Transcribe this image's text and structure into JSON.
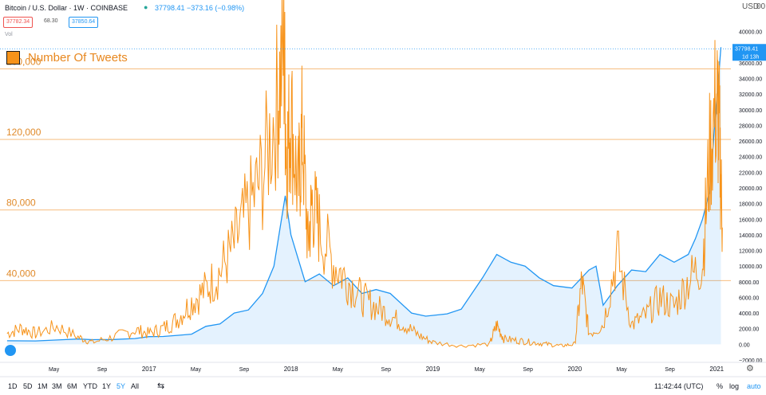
{
  "header": {
    "title": "Bitcoin / U.S. Dollar · 1W · COINBASE",
    "price_info": "37798.41 −373.16 (−0.98%)",
    "bid": "37782.34",
    "spread": "68.30",
    "ask": "37850.64",
    "volume_label": "Vol",
    "top_right_labels": [
      "USD",
      "00"
    ]
  },
  "legend": {
    "label": "Number Of Tweets",
    "color": "#f7931a"
  },
  "bottom_bar": {
    "ranges": [
      "1D",
      "5D",
      "1M",
      "3M",
      "6M",
      "YTD",
      "1Y",
      "5Y",
      "All"
    ],
    "active_range": "5Y",
    "clock": "11:42:44 (UTC)",
    "percent_label": "%",
    "log_label": "log",
    "auto_label": "auto"
  },
  "colors": {
    "price_line": "#2196f3",
    "price_fill": "#2196f3",
    "tweets": "#f7931a",
    "tweet_grid": "#f5b46e",
    "text": "#131722",
    "axis_text": "#131722"
  },
  "chart_data": [
    {
      "type": "area",
      "title": "Bitcoin / U.S. Dollar · 1W · COINBASE",
      "series": [
        {
          "values": [
            [
              2016.0,
              450
            ],
            [
              2016.2,
              430
            ],
            [
              2016.4,
              600
            ],
            [
              2016.5,
              680
            ],
            [
              2016.6,
              600
            ],
            [
              2016.75,
              620
            ],
            [
              2016.9,
              740
            ],
            [
              2017.0,
              980
            ],
            [
              2017.1,
              1000
            ],
            [
              2017.2,
              1150
            ],
            [
              2017.3,
              1300
            ],
            [
              2017.4,
              2300
            ],
            [
              2017.5,
              2600
            ],
            [
              2017.6,
              4000
            ],
            [
              2017.7,
              4400
            ],
            [
              2017.8,
              6500
            ],
            [
              2017.88,
              10000
            ],
            [
              2017.96,
              19000
            ],
            [
              2018.0,
              14000
            ],
            [
              2018.05,
              11000
            ],
            [
              2018.1,
              8000
            ],
            [
              2018.2,
              9000
            ],
            [
              2018.3,
              7500
            ],
            [
              2018.4,
              8500
            ],
            [
              2018.5,
              6500
            ],
            [
              2018.6,
              7000
            ],
            [
              2018.7,
              6500
            ],
            [
              2018.85,
              4000
            ],
            [
              2018.95,
              3600
            ],
            [
              2019.1,
              3900
            ],
            [
              2019.2,
              4500
            ],
            [
              2019.35,
              8500
            ],
            [
              2019.45,
              11500
            ],
            [
              2019.55,
              10500
            ],
            [
              2019.65,
              10000
            ],
            [
              2019.75,
              8500
            ],
            [
              2019.85,
              7500
            ],
            [
              2019.98,
              7200
            ],
            [
              2020.1,
              9500
            ],
            [
              2020.15,
              10000
            ],
            [
              2020.2,
              5000
            ],
            [
              2020.3,
              7500
            ],
            [
              2020.4,
              9500
            ],
            [
              2020.5,
              9300
            ],
            [
              2020.6,
              11500
            ],
            [
              2020.7,
              10500
            ],
            [
              2020.8,
              11500
            ],
            [
              2020.85,
              13500
            ],
            [
              2020.9,
              16000
            ],
            [
              2020.95,
              19500
            ],
            [
              2020.99,
              29000
            ],
            [
              2021.03,
              38000
            ]
          ]
        }
      ],
      "xlim": [
        2015.95,
        2021.1
      ],
      "ylim": [
        -2000,
        42000
      ],
      "x_ticks": [
        {
          "x": 2016.33,
          "label": "May"
        },
        {
          "x": 2016.67,
          "label": "Sep"
        },
        {
          "x": 2017.0,
          "label": "2017"
        },
        {
          "x": 2017.33,
          "label": "May"
        },
        {
          "x": 2017.67,
          "label": "Sep"
        },
        {
          "x": 2018.0,
          "label": "2018"
        },
        {
          "x": 2018.33,
          "label": "May"
        },
        {
          "x": 2018.67,
          "label": "Sep"
        },
        {
          "x": 2019.0,
          "label": "2019"
        },
        {
          "x": 2019.33,
          "label": "May"
        },
        {
          "x": 2019.67,
          "label": "Sep"
        },
        {
          "x": 2020.0,
          "label": "2020"
        },
        {
          "x": 2020.33,
          "label": "May"
        },
        {
          "x": 2020.67,
          "label": "Sep"
        },
        {
          "x": 2021.0,
          "label": "2021"
        }
      ],
      "y_ticks": [
        {
          "y": 40000,
          "label": "40000.00"
        },
        {
          "y": 36000,
          "label": "36000.00"
        },
        {
          "y": 34000,
          "label": "34000.00"
        },
        {
          "y": 32000,
          "label": "32000.00"
        },
        {
          "y": 30000,
          "label": "30000.00"
        },
        {
          "y": 28000,
          "label": "28000.00"
        },
        {
          "y": 26000,
          "label": "26000.00"
        },
        {
          "y": 24000,
          "label": "24000.00"
        },
        {
          "y": 22000,
          "label": "22000.00"
        },
        {
          "y": 20000,
          "label": "20000.00"
        },
        {
          "y": 18000,
          "label": "18000.00"
        },
        {
          "y": 16000,
          "label": "16000.00"
        },
        {
          "y": 14000,
          "label": "14000.00"
        },
        {
          "y": 12000,
          "label": "12000.00"
        },
        {
          "y": 10000,
          "label": "10000.00"
        },
        {
          "y": 8000,
          "label": "8000.00"
        },
        {
          "y": 6000,
          "label": "6000.00"
        },
        {
          "y": 4000,
          "label": "4000.00"
        },
        {
          "y": 2000,
          "label": "2000.00"
        },
        {
          "y": 0,
          "label": "0.00"
        },
        {
          "y": -2000,
          "label": "−2000.00"
        }
      ],
      "last_price_label": "37798.41",
      "countdown_label": "1d 13h",
      "last_price_value": 37798.41
    },
    {
      "type": "line",
      "series": [
        {
          "name": "Number Of Tweets",
          "values": [
            [
              2016.0,
              10000
            ],
            [
              2016.1,
              13000
            ],
            [
              2016.2,
              10000
            ],
            [
              2016.35,
              14000
            ],
            [
              2016.5,
              8000
            ],
            [
              2016.6,
              5000
            ],
            [
              2016.75,
              8000
            ],
            [
              2016.9,
              12000
            ],
            [
              2017.0,
              10000
            ],
            [
              2017.1,
              13000
            ],
            [
              2017.2,
              18000
            ],
            [
              2017.3,
              28000
            ],
            [
              2017.4,
              35000
            ],
            [
              2017.5,
              45000
            ],
            [
              2017.6,
              60000
            ],
            [
              2017.7,
              80000
            ],
            [
              2017.8,
              100000
            ],
            [
              2017.9,
              140000
            ],
            [
              2017.95,
              171000
            ],
            [
              2017.97,
              110000
            ],
            [
              2018.0,
              135000
            ],
            [
              2018.05,
              90000
            ],
            [
              2018.08,
              125000
            ],
            [
              2018.12,
              60000
            ],
            [
              2018.15,
              85000
            ],
            [
              2018.2,
              70000
            ],
            [
              2018.3,
              50000
            ],
            [
              2018.4,
              40000
            ],
            [
              2018.5,
              30000
            ],
            [
              2018.6,
              25000
            ],
            [
              2018.7,
              20000
            ],
            [
              2018.8,
              15000
            ],
            [
              2018.9,
              9000
            ],
            [
              2019.0,
              5000
            ],
            [
              2019.2,
              3000
            ],
            [
              2019.4,
              4000
            ],
            [
              2019.45,
              15000
            ],
            [
              2019.5,
              7000
            ],
            [
              2019.6,
              6000
            ],
            [
              2019.7,
              5000
            ],
            [
              2019.8,
              4000
            ],
            [
              2019.9,
              3000
            ],
            [
              2020.0,
              4000
            ],
            [
              2020.05,
              40000
            ],
            [
              2020.1,
              10000
            ],
            [
              2020.2,
              15000
            ],
            [
              2020.3,
              55000
            ],
            [
              2020.4,
              15000
            ],
            [
              2020.5,
              20000
            ],
            [
              2020.6,
              30000
            ],
            [
              2020.7,
              25000
            ],
            [
              2020.8,
              40000
            ],
            [
              2020.9,
              50000
            ],
            [
              2020.95,
              110000
            ],
            [
              2021.0,
              145000
            ],
            [
              2021.02,
              120000
            ],
            [
              2021.04,
              70000
            ]
          ]
        }
      ],
      "xlim": [
        2015.95,
        2021.1
      ],
      "ylim": [
        -5000,
        190000
      ],
      "y_ticks": [
        {
          "y": 40000,
          "label": "40,000"
        },
        {
          "y": 80000,
          "label": "80,000"
        },
        {
          "y": 120000,
          "label": "120,000"
        },
        {
          "y": 160000,
          "label": "160,000"
        }
      ]
    }
  ]
}
